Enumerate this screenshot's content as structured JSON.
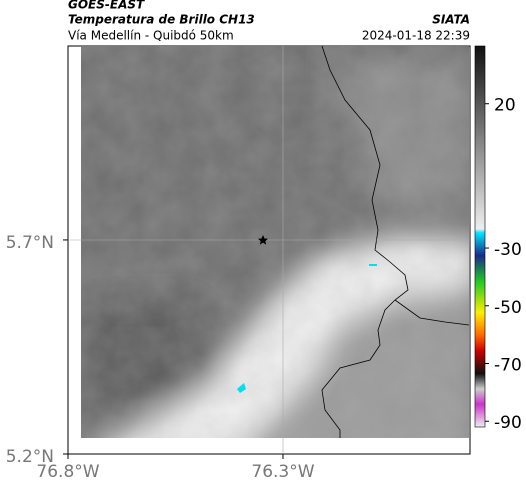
{
  "header": {
    "source": "GOES-EAST",
    "product": "Temperatura de Brillo CH13",
    "agency": "SIATA",
    "route": "Vía Medellín - Quibdó 50km",
    "timestamp": "2024-01-18 22:39"
  },
  "map": {
    "xlim": [
      -76.8,
      -75.865
    ],
    "ylim": [
      5.2,
      6.153
    ],
    "xticks": [
      {
        "value": -76.8,
        "label": "76.8°W"
      },
      {
        "value": -76.3,
        "label": "76.3°W"
      }
    ],
    "yticks": [
      {
        "value": 5.7,
        "label": "5.7°N"
      },
      {
        "value": 5.2,
        "label": "5.2°N"
      }
    ]
  },
  "colorbar": {
    "lim": [
      -92,
      40
    ],
    "ticks": [
      20,
      -30,
      -50,
      -70,
      -90
    ]
  }
}
